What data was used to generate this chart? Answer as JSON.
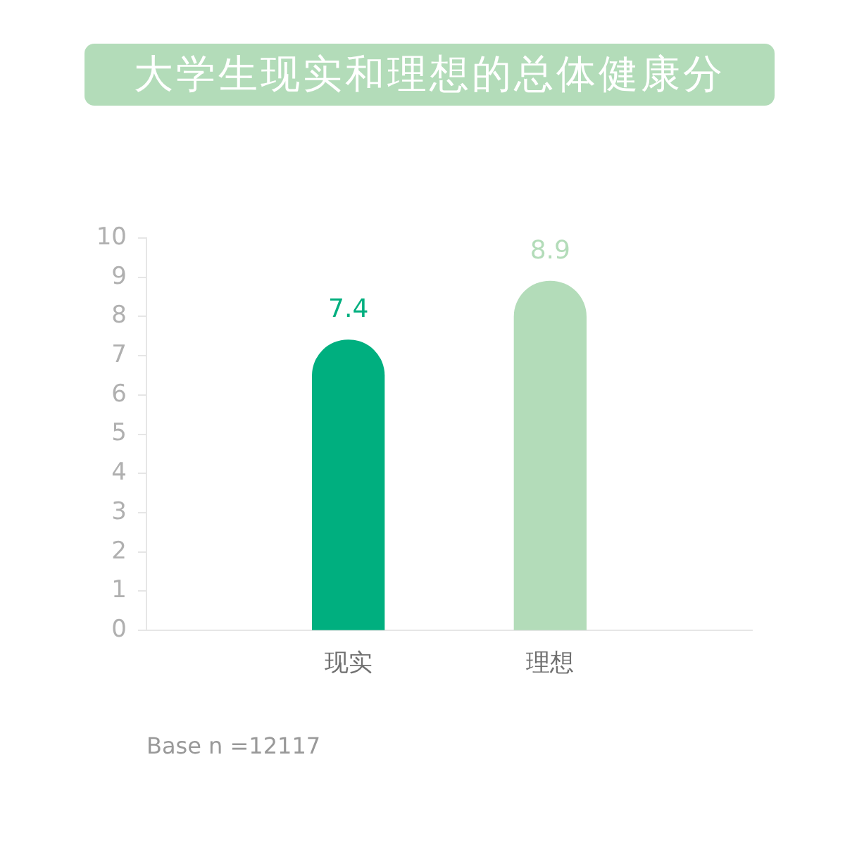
{
  "chart_data": {
    "type": "bar",
    "title": "大学生现实和理想的总体健康分",
    "categories": [
      "现实",
      "理想"
    ],
    "values": [
      7.4,
      8.9
    ],
    "colors": [
      "#00af7f",
      "#b3dcb9"
    ],
    "ylim": [
      0,
      10
    ],
    "yticks": [
      0,
      1,
      2,
      3,
      4,
      5,
      6,
      7,
      8,
      9,
      10
    ],
    "data_labels": true,
    "annotations": [
      "Base n =12117"
    ]
  }
}
